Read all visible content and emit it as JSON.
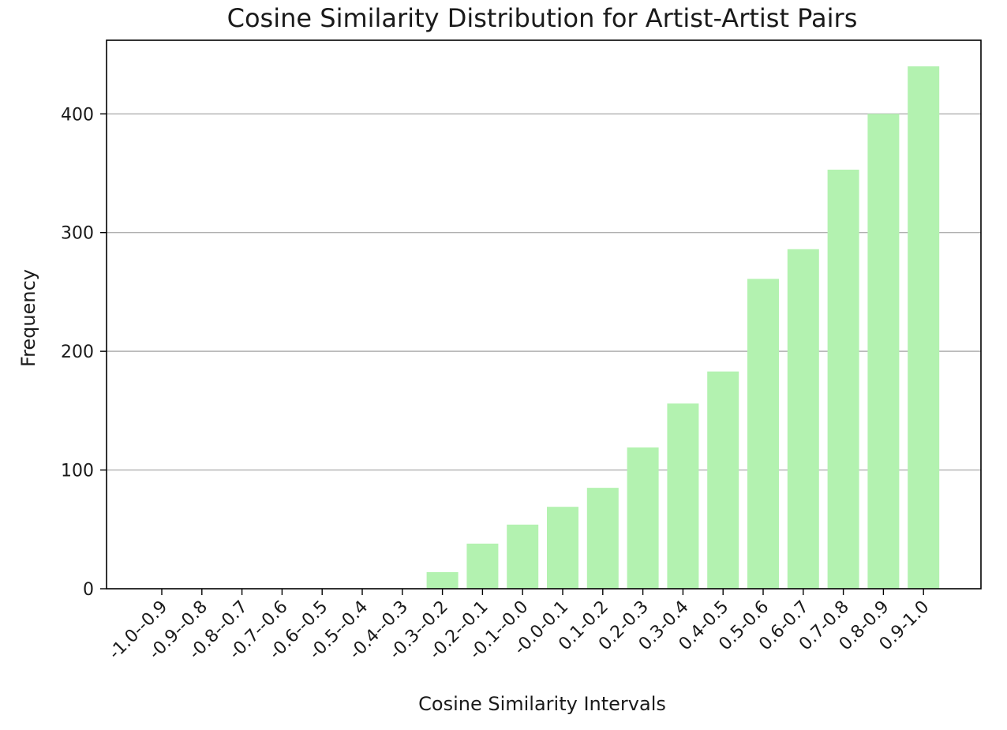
{
  "chart_data": {
    "type": "bar",
    "title": "Cosine Similarity Distribution for Artist-Artist Pairs",
    "xlabel": "Cosine Similarity Intervals",
    "ylabel": "Frequency",
    "categories": [
      "-1.0--0.9",
      "-0.9--0.8",
      "-0.8--0.7",
      "-0.7--0.6",
      "-0.6--0.5",
      "-0.5--0.4",
      "-0.4--0.3",
      "-0.3--0.2",
      "-0.2--0.1",
      "-0.1--0.0",
      "-0.0-0.1",
      "0.1-0.2",
      "0.2-0.3",
      "0.3-0.4",
      "0.4-0.5",
      "0.5-0.6",
      "0.6-0.7",
      "0.7-0.8",
      "0.8-0.9",
      "0.9-1.0"
    ],
    "values": [
      0,
      0,
      0,
      0,
      0,
      0,
      0,
      14,
      38,
      54,
      69,
      85,
      119,
      156,
      183,
      261,
      286,
      353,
      400,
      440
    ],
    "ylim": [
      0,
      462
    ],
    "yticks": [
      0,
      100,
      200,
      300,
      400
    ],
    "grid": "y",
    "bar_color": "#b3f2b0",
    "tick_rotation": -45
  }
}
